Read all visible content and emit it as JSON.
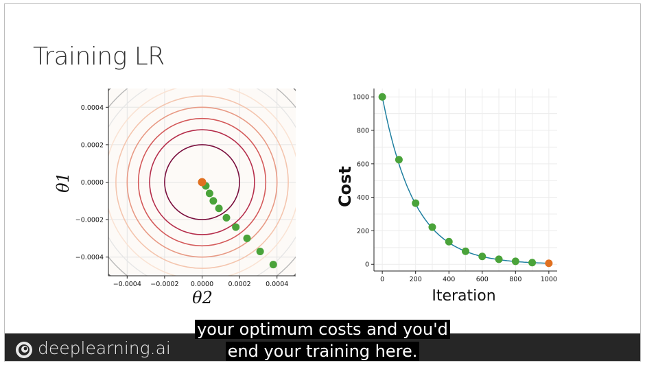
{
  "slide": {
    "title": "Training LR"
  },
  "chart_data": [
    {
      "type": "contour",
      "xlabel": "θ2",
      "ylabel": "θ1",
      "xlim": [
        -0.0005,
        0.0005
      ],
      "ylim": [
        -0.0005,
        0.0005
      ],
      "xticks": [
        "−0.0004",
        "−0.0002",
        "0.0000",
        "0.0002",
        "0.0004"
      ],
      "yticks": [
        "0.0004",
        "0.0002",
        "0.0000",
        "−0.0002",
        "−0.0004"
      ],
      "contour_radii": [
        0.0002,
        0.00028,
        0.00034,
        0.0004,
        0.00046,
        0.00052
      ],
      "contour_colors": [
        "#7a0f3e",
        "#b52d4a",
        "#d45a5a",
        "#e89a85",
        "#f4c5ae",
        "#fae3d4"
      ],
      "outer_colors": [
        "#e6e6e6",
        "#b8b8b8",
        "#7a7a7a",
        "#4a4a4a"
      ],
      "path_points": [
        {
          "x": 0.00038,
          "y": -0.00044
        },
        {
          "x": 0.00031,
          "y": -0.00037
        },
        {
          "x": 0.00024,
          "y": -0.0003
        },
        {
          "x": 0.00018,
          "y": -0.00024
        },
        {
          "x": 0.00013,
          "y": -0.00019
        },
        {
          "x": 9e-05,
          "y": -0.00014
        },
        {
          "x": 6e-05,
          "y": -0.0001
        },
        {
          "x": 4e-05,
          "y": -6e-05
        },
        {
          "x": 2e-05,
          "y": -2e-05
        }
      ],
      "optimum": {
        "x": 0.0,
        "y": 0.0
      },
      "point_color": "#4aa33a",
      "optimum_color": "#e07020"
    },
    {
      "type": "line",
      "xlabel": "Iteration",
      "ylabel": "Cost",
      "xlim": [
        -50,
        1050
      ],
      "ylim": [
        -40,
        1050
      ],
      "xticks": [
        "0",
        "200",
        "400",
        "600",
        "800",
        "1000"
      ],
      "yticks": [
        "1000",
        "800",
        "600",
        "400",
        "200",
        "0"
      ],
      "points": [
        {
          "x": 0,
          "y": 1000
        },
        {
          "x": 100,
          "y": 625
        },
        {
          "x": 200,
          "y": 365
        },
        {
          "x": 300,
          "y": 222
        },
        {
          "x": 400,
          "y": 135
        },
        {
          "x": 500,
          "y": 78
        },
        {
          "x": 600,
          "y": 47
        },
        {
          "x": 700,
          "y": 30
        },
        {
          "x": 800,
          "y": 18
        },
        {
          "x": 900,
          "y": 10
        }
      ],
      "final_point": {
        "x": 1000,
        "y": 6
      },
      "line_color": "#1f7fa0",
      "point_color": "#4aa33a",
      "final_color": "#e07020"
    }
  ],
  "footer": {
    "brand": "deeplearning.ai"
  },
  "captions": {
    "line1": "your optimum costs and you'd",
    "line2": "end your training here."
  }
}
